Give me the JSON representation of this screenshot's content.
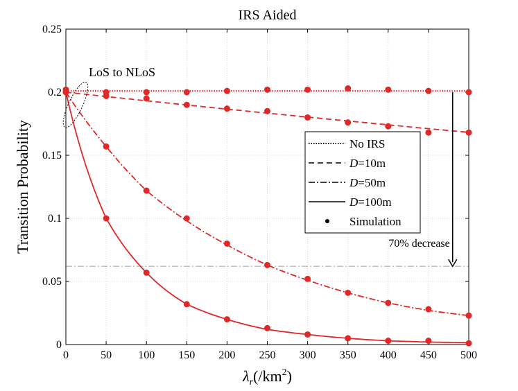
{
  "chart_data": {
    "type": "line",
    "title": "IRS Aided",
    "ylabel": "Transition Probability",
    "xlabel": {
      "symbol": "λ",
      "subscript": "r",
      "unit_open": "(/km",
      "unit_sup": "2",
      "unit_close": ")"
    },
    "xlim": [
      0,
      500
    ],
    "ylim": [
      0,
      0.25
    ],
    "xticks": [
      0,
      50,
      100,
      150,
      200,
      250,
      300,
      350,
      400,
      450,
      500
    ],
    "xtick_labels": [
      "0",
      "50",
      "100",
      "150",
      "200",
      "250",
      "300",
      "350",
      "400",
      "450",
      "500"
    ],
    "yticks": [
      0,
      0.05,
      0.1,
      0.15,
      0.2,
      0.25
    ],
    "ytick_labels": [
      "0",
      "0.05",
      "0.1",
      "0.15",
      "0.2",
      "0.25"
    ],
    "grid": true,
    "line_color": "#e02828",
    "series": [
      {
        "name": "No IRS",
        "style": "dotted",
        "x": [
          0,
          50,
          100,
          150,
          200,
          250,
          300,
          350,
          400,
          450,
          500
        ],
        "y": [
          0.201,
          0.201,
          0.201,
          0.201,
          0.201,
          0.201,
          0.201,
          0.201,
          0.201,
          0.201,
          0.201
        ]
      },
      {
        "name": "D=10m",
        "style": "dashed",
        "x": [
          0,
          50,
          100,
          150,
          200,
          250,
          300,
          350,
          400,
          450,
          500
        ],
        "y": [
          0.2,
          0.1966,
          0.1932,
          0.1899,
          0.1866,
          0.1834,
          0.1803,
          0.1772,
          0.1741,
          0.1711,
          0.1682
        ]
      },
      {
        "name": "D=50m",
        "style": "dashdot",
        "x": [
          0,
          50,
          100,
          150,
          200,
          250,
          300,
          350,
          400,
          450,
          500
        ],
        "y": [
          0.2,
          0.157,
          0.122,
          0.098,
          0.079,
          0.063,
          0.051,
          0.041,
          0.033,
          0.027,
          0.023
        ]
      },
      {
        "name": "D=100m",
        "style": "solid",
        "x": [
          0,
          50,
          100,
          150,
          200,
          250,
          300,
          350,
          400,
          450,
          500
        ],
        "y": [
          0.2,
          0.1,
          0.057,
          0.032,
          0.02,
          0.012,
          0.008,
          0.005,
          0.003,
          0.002,
          0.0015
        ]
      }
    ],
    "simulation": {
      "name": "Simulation",
      "x": [
        0,
        50,
        100,
        150,
        200,
        250,
        300,
        350,
        400,
        450,
        500
      ],
      "no_irs": [
        0.202,
        0.2,
        0.2,
        0.2,
        0.201,
        0.202,
        0.202,
        0.203,
        0.202,
        0.201,
        0.2
      ],
      "d10": [
        0.2,
        0.197,
        0.195,
        0.19,
        0.187,
        0.185,
        0.18,
        0.176,
        0.173,
        0.168,
        0.168
      ],
      "d50": [
        0.2,
        0.157,
        0.122,
        0.1,
        0.08,
        0.063,
        0.052,
        0.041,
        0.033,
        0.028,
        0.023
      ],
      "d100": [
        0.2,
        0.1,
        0.057,
        0.032,
        0.02,
        0.013,
        0.008,
        0.005,
        0.003,
        0.003,
        0.001
      ]
    },
    "legend": {
      "position": "center-right",
      "entries": [
        {
          "label": "No IRS",
          "style": "dotted",
          "math": false
        },
        {
          "label": "D=10m",
          "style": "dashed",
          "math": true,
          "sym": "D",
          "rest": "=10m"
        },
        {
          "label": "D=50m",
          "style": "dashdot",
          "math": true,
          "sym": "D",
          "rest": "=50m"
        },
        {
          "label": "D=100m",
          "style": "solid",
          "math": true,
          "sym": "D",
          "rest": "=100m"
        },
        {
          "label": "Simulation",
          "style": "marker",
          "math": false
        }
      ]
    },
    "reference_line": {
      "y": 0.062,
      "style": "dashdot",
      "color": "#a0a0a0"
    },
    "annotations": {
      "los_label": "LoS to NLoS",
      "ellipse_center": {
        "x": 12,
        "y": 0.19
      },
      "decrease_label": "70% decrease",
      "arrow": {
        "x": 480,
        "y_from": 0.2,
        "y_to": 0.062
      }
    }
  }
}
